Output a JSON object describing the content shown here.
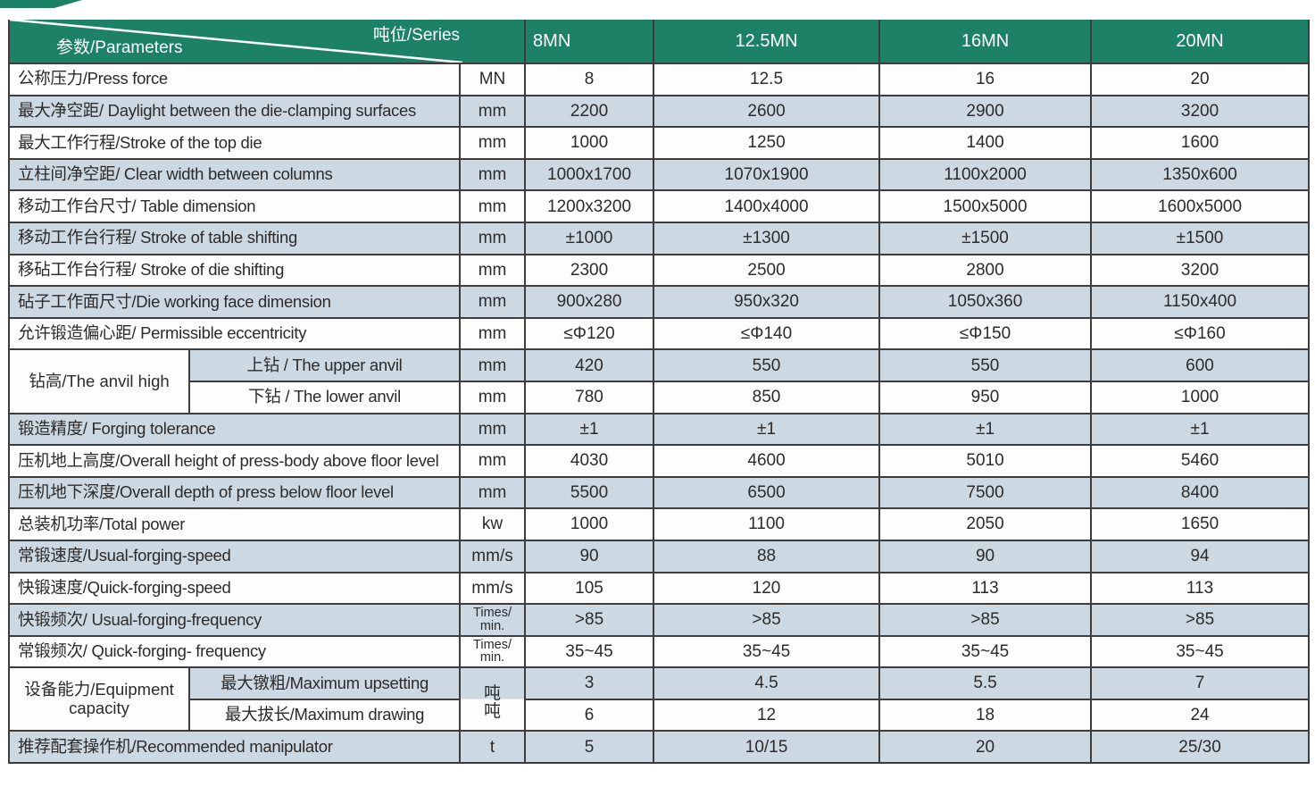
{
  "colors": {
    "header_green": "#1d8165",
    "row_shade_blue": "#cdd9e2",
    "border_dark": "#3d3d3d",
    "header_text": "#ffffff"
  },
  "header": {
    "series_label": "吨位/Series",
    "parameters_label": "参数/Parameters",
    "columns": [
      "8MN",
      "12.5MN",
      "16MN",
      "20MN"
    ]
  },
  "rows": [
    {
      "label": "公称压力/Press force",
      "unit": "MN",
      "values": [
        "8",
        "12.5",
        "16",
        "20"
      ],
      "shade": false
    },
    {
      "label": "最大净空距/ Daylight between the die-clamping surfaces",
      "unit": "mm",
      "values": [
        "2200",
        "2600",
        "2900",
        "3200"
      ],
      "shade": true
    },
    {
      "label": "最大工作行程/Stroke of the top die",
      "unit": "mm",
      "values": [
        "1000",
        "1250",
        "1400",
        "1600"
      ],
      "shade": false
    },
    {
      "label": "立柱间净空距/ Clear width between columns",
      "unit": "mm",
      "values": [
        "1000x1700",
        "1070x1900",
        "1100x2000",
        "1350x600"
      ],
      "shade": true
    },
    {
      "label": "移动工作台尺寸/ Table dimension",
      "unit": "mm",
      "values": [
        "1200x3200",
        "1400x4000",
        "1500x5000",
        "1600x5000"
      ],
      "shade": false
    },
    {
      "label": "移动工作台行程/ Stroke of table shifting",
      "unit": "mm",
      "values": [
        "±1000",
        "±1300",
        "±1500",
        "±1500"
      ],
      "shade": true
    },
    {
      "label": "移砧工作台行程/ Stroke of die shifting",
      "unit": "mm",
      "values": [
        "2300",
        "2500",
        "2800",
        "3200"
      ],
      "shade": false
    },
    {
      "label": "砧子工作面尺寸/Die working face dimension",
      "unit": "mm",
      "values": [
        "900x280",
        "950x320",
        "1050x360",
        "1150x400"
      ],
      "shade": true
    },
    {
      "label": "允许锻造偏心距/ Permissible eccentricity",
      "unit": "mm",
      "values": [
        "≤Φ120",
        "≤Φ140",
        "≤Φ150",
        "≤Φ160"
      ],
      "shade": false
    },
    {
      "group_label": "钻高/The anvil high",
      "group_rows": 2,
      "sub": true,
      "label": "上钻 / The upper anvil",
      "unit": "mm",
      "values": [
        "420",
        "550",
        "550",
        "600"
      ],
      "shade": true
    },
    {
      "sub": true,
      "label": "下钻 / The lower anvil",
      "unit": "mm",
      "values": [
        "780",
        "850",
        "950",
        "1000"
      ],
      "shade": false
    },
    {
      "label": "锻造精度/ Forging tolerance",
      "unit": "mm",
      "values": [
        "±1",
        "±1",
        "±1",
        "±1"
      ],
      "shade": true
    },
    {
      "label": "压机地上高度/Overall height of press-body above floor level",
      "unit": "mm",
      "values": [
        "4030",
        "4600",
        "5010",
        "5460"
      ],
      "shade": false
    },
    {
      "label": "压机地下深度/Overall depth of press below floor level",
      "unit": "mm",
      "values": [
        "5500",
        "6500",
        "7500",
        "8400"
      ],
      "shade": true
    },
    {
      "label": "总装机功率/Total power",
      "unit": "kw",
      "values": [
        "1000",
        "1100",
        "2050",
        "1650"
      ],
      "shade": false
    },
    {
      "label": "常锻速度/Usual-forging-speed",
      "unit": "mm/s",
      "values": [
        "90",
        "88",
        "90",
        "94"
      ],
      "shade": true
    },
    {
      "label": "快锻速度/Quick-forging-speed",
      "unit": "mm/s",
      "values": [
        "105",
        "120",
        "113",
        "113"
      ],
      "shade": false
    },
    {
      "label": "快锻频次/ Usual-forging-frequency",
      "unit": [
        "Times/",
        "min."
      ],
      "unit_small": true,
      "values": [
        ">85",
        ">85",
        ">85",
        ">85"
      ],
      "shade": true
    },
    {
      "label": "常锻频次/ Quick-forging- frequency",
      "unit": [
        "Times/",
        "min."
      ],
      "unit_small": true,
      "values": [
        "35~45",
        "35~45",
        "35~45",
        "35~45"
      ],
      "shade": false
    },
    {
      "group_label": [
        "设备能力/Equipment",
        "capacity"
      ],
      "group_rows": 2,
      "sub": true,
      "label": "最大镦粗/Maximum upsetting",
      "unit": [
        "吨",
        "吨"
      ],
      "unit_rowspan": 2,
      "unit_ton": true,
      "values": [
        "3",
        "4.5",
        "5.5",
        "7"
      ],
      "shade": true
    },
    {
      "sub": true,
      "label": "最大拔长/Maximum drawing",
      "unit": null,
      "values": [
        "6",
        "12",
        "18",
        "24"
      ],
      "shade": false
    },
    {
      "label": "推荐配套操作机/Recommended manipulator",
      "unit": "t",
      "values": [
        "5",
        "10/15",
        "20",
        "25/30"
      ],
      "shade": true
    }
  ]
}
